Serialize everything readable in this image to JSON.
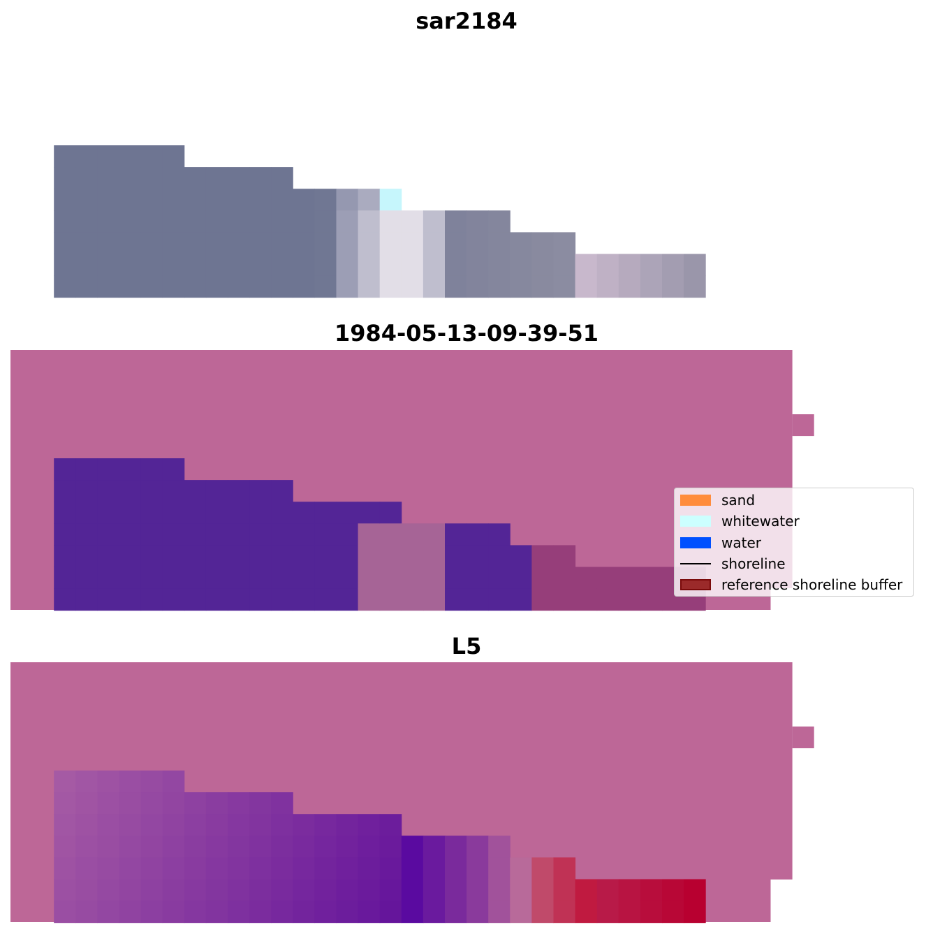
{
  "panels": [
    {
      "title": "sar2184"
    },
    {
      "title": "1984-05-13-09-39-51"
    },
    {
      "title": "L5"
    }
  ],
  "legend": {
    "placement": "right",
    "items": [
      {
        "label": "sand",
        "kind": "patch",
        "color": "#ff8c3c"
      },
      {
        "label": "whitewater",
        "kind": "patch",
        "color": "#ccffff"
      },
      {
        "label": "water",
        "kind": "patch",
        "color": "#0050ff"
      },
      {
        "label": "shoreline",
        "kind": "line",
        "color": "#000000"
      },
      {
        "label": "reference shoreline buffer",
        "kind": "patch",
        "color": "#9b2a2a",
        "edge": "#7a0a0a"
      }
    ]
  },
  "colors": {
    "background_mask": "#bd6797",
    "water_class": "#532596",
    "mixed_class": "#a66496",
    "buffer_red": "#b80030"
  }
}
